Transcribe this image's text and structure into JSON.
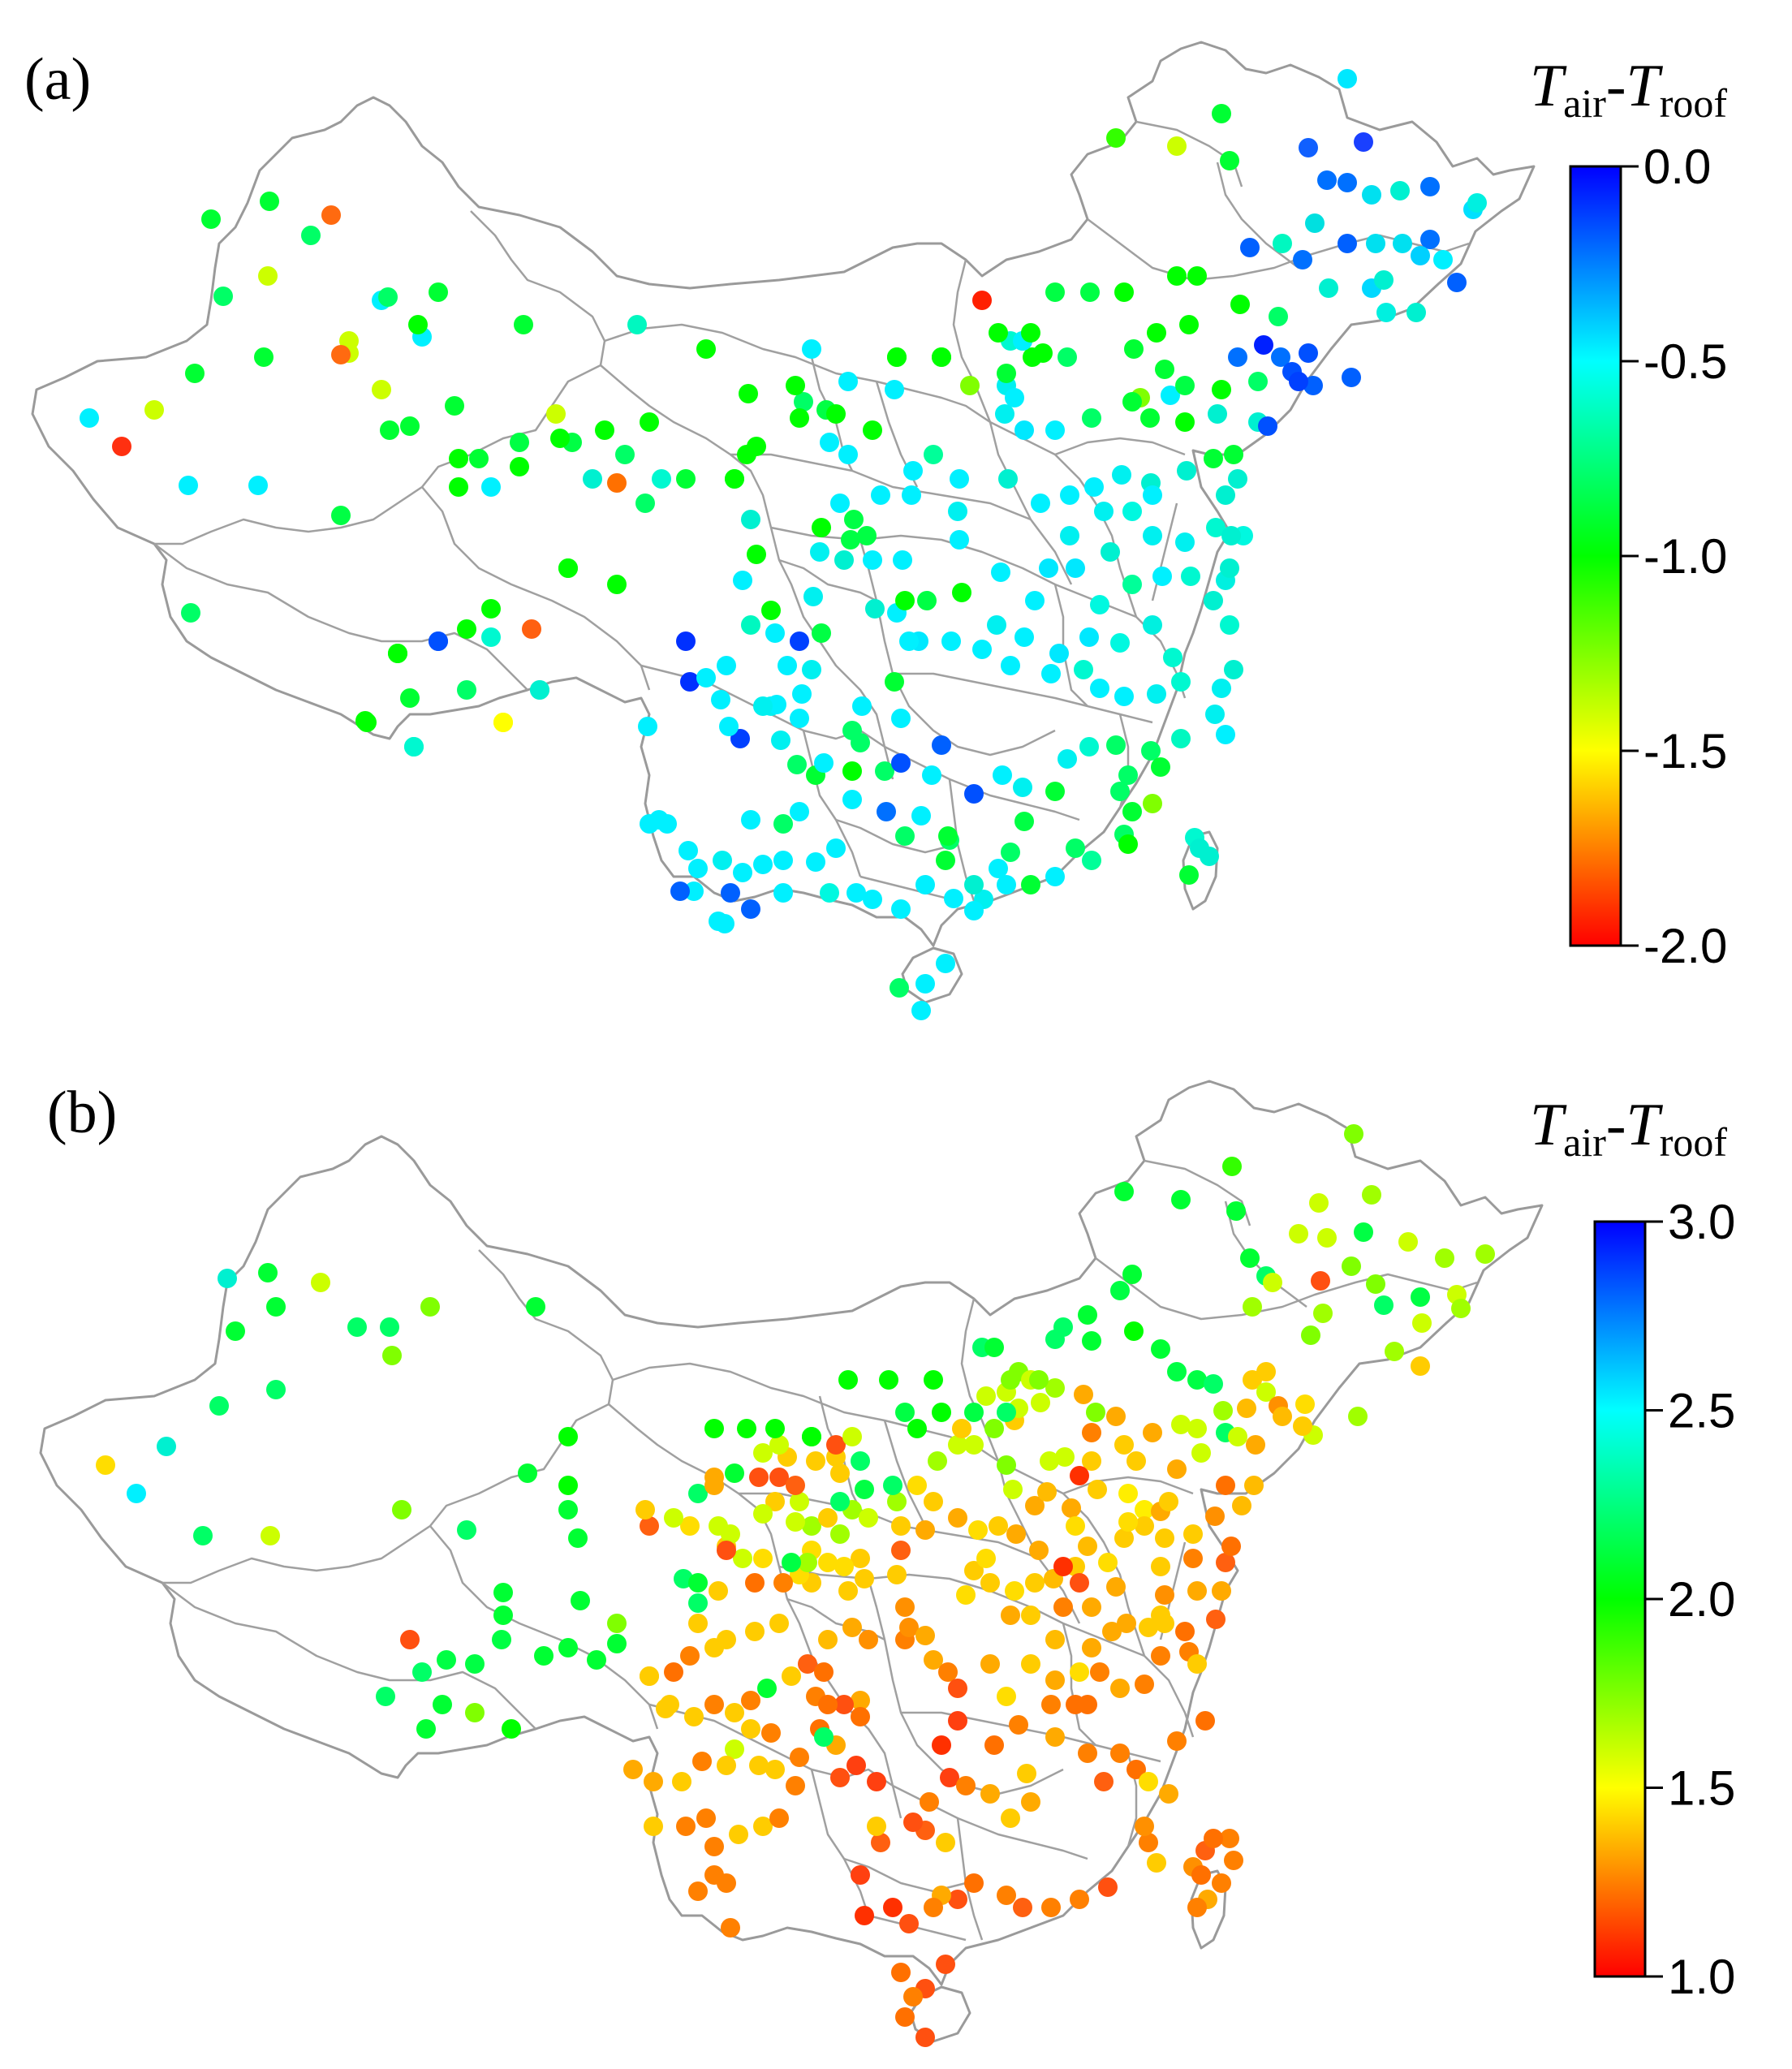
{
  "panels": [
    {
      "id": "a",
      "label": "(a)",
      "colorbar": {
        "title_main_1": "T",
        "title_sub_1": "air",
        "title_dash": "-",
        "title_main_2": "T",
        "title_sub_2": "roof",
        "ticks": [
          "0.0",
          "-0.5",
          "-1.0",
          "-1.5",
          "-2.0"
        ],
        "tick_values": [
          0.0,
          -0.5,
          -1.0,
          -1.5,
          -2.0
        ],
        "min": -2.0,
        "max": 0.0,
        "colors_top_to_bottom": [
          "#0000ff",
          "#00ffff",
          "#00ff00",
          "#ffff00",
          "#ff0000"
        ]
      }
    },
    {
      "id": "b",
      "label": "(b)",
      "colorbar": {
        "title_main_1": "T",
        "title_sub_1": "air",
        "title_dash": "-",
        "title_main_2": "T",
        "title_sub_2": "roof",
        "ticks": [
          "3.0",
          "2.5",
          "2.0",
          "1.5",
          "1.0"
        ],
        "tick_values": [
          3.0,
          2.5,
          2.0,
          1.5,
          1.0
        ],
        "min": 1.0,
        "max": 3.0,
        "colors_top_to_bottom": [
          "#0000ff",
          "#00ffff",
          "#00ff00",
          "#ffff00",
          "#ff0000"
        ]
      }
    }
  ]
}
